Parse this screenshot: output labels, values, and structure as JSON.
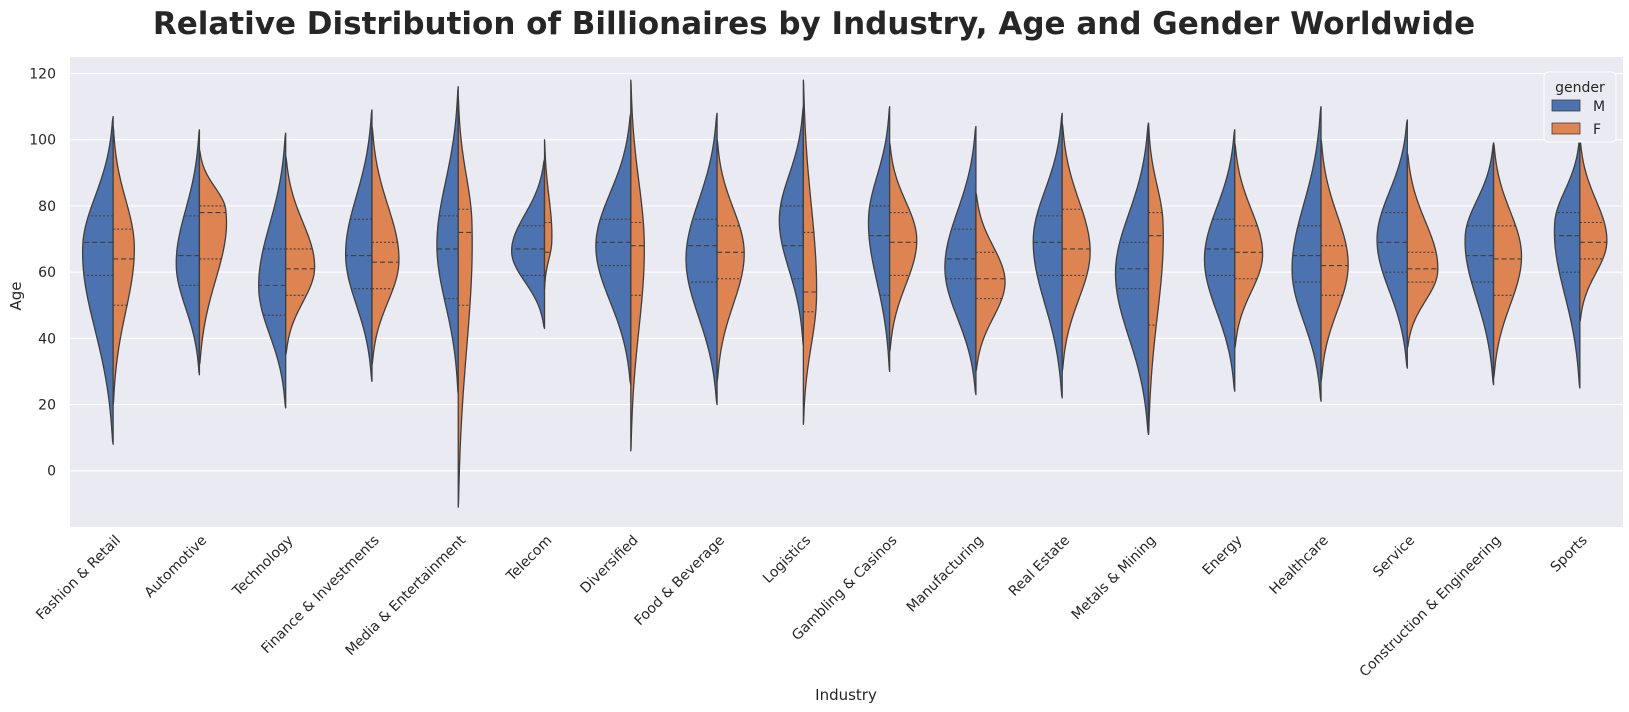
{
  "chart_data": {
    "type": "violin",
    "title": "Relative Distribution of Billionaires by Industry, Age and Gender Worldwide",
    "xlabel": "Industry",
    "ylabel": "Age",
    "ylim": [
      -17,
      125
    ],
    "yticks": [
      0,
      20,
      40,
      60,
      80,
      100,
      120
    ],
    "grid": true,
    "legend": {
      "title": "gender",
      "placement": "top-right"
    },
    "categories": [
      "Fashion & Retail",
      "Automotive",
      "Technology",
      "Finance & Investments",
      "Media & Entertainment",
      "Telecom",
      "Diversified",
      "Food & Beverage",
      "Logistics",
      "Gambling & Casinos",
      "Manufacturing",
      "Real Estate",
      "Metals & Mining",
      "Energy",
      "Healthcare",
      "Service",
      "Construction & Engineering",
      "Sports"
    ],
    "series": [
      {
        "name": "M",
        "color": "#4c72b0",
        "violins": [
          {
            "min": 8,
            "max": 107,
            "width": 0.8,
            "q1": 59,
            "median": 69,
            "q3": 77,
            "mode": 68
          },
          {
            "min": 29,
            "max": 103,
            "width": 0.6,
            "q1": 56,
            "median": 65,
            "q3": 77,
            "mode": 62
          },
          {
            "min": 19,
            "max": 102,
            "width": 0.7,
            "q1": 47,
            "median": 56,
            "q3": 67,
            "mode": 55
          },
          {
            "min": 27,
            "max": 109,
            "width": 0.68,
            "q1": 55,
            "median": 65,
            "q3": 76,
            "mode": 65
          },
          {
            "min": 23,
            "max": 116,
            "width": 0.55,
            "q1": 52,
            "median": 67,
            "q3": 77,
            "mode": 68
          },
          {
            "min": 43,
            "max": 94,
            "width": 0.85,
            "q1": 59,
            "median": 67,
            "q3": 74,
            "mode": 66
          },
          {
            "min": 26,
            "max": 108,
            "width": 0.9,
            "q1": 62,
            "median": 69,
            "q3": 76,
            "mode": 68
          },
          {
            "min": 20,
            "max": 108,
            "width": 0.8,
            "q1": 57,
            "median": 68,
            "q3": 76,
            "mode": 64
          },
          {
            "min": 38,
            "max": 110,
            "width": 0.62,
            "q1": 58,
            "median": 68,
            "q3": 80,
            "mode": 76
          },
          {
            "min": 30,
            "max": 110,
            "width": 0.55,
            "q1": 53,
            "median": 71,
            "q3": 80,
            "mode": 76
          },
          {
            "min": 23,
            "max": 104,
            "width": 0.8,
            "q1": 58,
            "median": 64,
            "q3": 73,
            "mode": 61
          },
          {
            "min": 22,
            "max": 108,
            "width": 0.75,
            "q1": 59,
            "median": 69,
            "q3": 77,
            "mode": 70
          },
          {
            "min": 11,
            "max": 105,
            "width": 0.85,
            "q1": 55,
            "median": 61,
            "q3": 69,
            "mode": 60
          },
          {
            "min": 24,
            "max": 103,
            "width": 0.78,
            "q1": 59,
            "median": 67,
            "q3": 76,
            "mode": 64
          },
          {
            "min": 21,
            "max": 110,
            "width": 0.75,
            "q1": 57,
            "median": 65,
            "q3": 74,
            "mode": 60
          },
          {
            "min": 31,
            "max": 106,
            "width": 0.78,
            "q1": 60,
            "median": 69,
            "q3": 78,
            "mode": 70
          },
          {
            "min": 26,
            "max": 99,
            "width": 0.75,
            "q1": 57,
            "median": 65,
            "q3": 74,
            "mode": 71
          },
          {
            "min": 25,
            "max": 101,
            "width": 0.68,
            "q1": 60,
            "median": 71,
            "q3": 78,
            "mode": 75
          }
        ]
      },
      {
        "name": "F",
        "color": "#dd8452",
        "violins": [
          {
            "min": 20,
            "max": 104,
            "width": 0.55,
            "q1": 50,
            "median": 64,
            "q3": 73,
            "mode": 68
          },
          {
            "min": 32,
            "max": 97,
            "width": 0.75,
            "q1": 64,
            "median": 78,
            "q3": 80,
            "mode": 79
          },
          {
            "min": 35,
            "max": 95,
            "width": 0.75,
            "q1": 53,
            "median": 61,
            "q3": 67,
            "mode": 61
          },
          {
            "min": 32,
            "max": 104,
            "width": 0.7,
            "q1": 55,
            "median": 63,
            "q3": 69,
            "mode": 63
          },
          {
            "min": -11,
            "max": 113,
            "width": 0.38,
            "q1": 50,
            "median": 72,
            "q3": 79,
            "mode": 75
          },
          {
            "min": 55,
            "max": 100,
            "width": 0.2,
            "q1": 60,
            "median": 66,
            "q3": 75,
            "mode": 69
          },
          {
            "min": 6,
            "max": 118,
            "width": 0.35,
            "q1": 53,
            "median": 68,
            "q3": 75,
            "mode": 68
          },
          {
            "min": 27,
            "max": 100,
            "width": 0.7,
            "q1": 58,
            "median": 66,
            "q3": 74,
            "mode": 66
          },
          {
            "min": 14,
            "max": 118,
            "width": 0.35,
            "q1": 48,
            "median": 54,
            "q3": 72,
            "mode": 52
          },
          {
            "min": 36,
            "max": 99,
            "width": 0.7,
            "q1": 59,
            "median": 69,
            "q3": 78,
            "mode": 70
          },
          {
            "min": 30,
            "max": 84,
            "width": 0.75,
            "q1": 52,
            "median": 58,
            "q3": 66,
            "mode": 57
          },
          {
            "min": 30,
            "max": 105,
            "width": 0.72,
            "q1": 59,
            "median": 67,
            "q3": 79,
            "mode": 66
          },
          {
            "min": 11,
            "max": 105,
            "width": 0.4,
            "q1": 44,
            "median": 71,
            "q3": 78,
            "mode": 75
          },
          {
            "min": 37,
            "max": 99,
            "width": 0.72,
            "q1": 58,
            "median": 66,
            "q3": 74,
            "mode": 65
          },
          {
            "min": 27,
            "max": 100,
            "width": 0.7,
            "q1": 53,
            "median": 62,
            "q3": 68,
            "mode": 62
          },
          {
            "min": 37,
            "max": 96,
            "width": 0.8,
            "q1": 57,
            "median": 61,
            "q3": 66,
            "mode": 60
          },
          {
            "min": 28,
            "max": 99,
            "width": 0.72,
            "q1": 53,
            "median": 64,
            "q3": 74,
            "mode": 65
          },
          {
            "min": 45,
            "max": 100,
            "width": 0.7,
            "q1": 64,
            "median": 69,
            "q3": 75,
            "mode": 69
          }
        ]
      }
    ]
  }
}
